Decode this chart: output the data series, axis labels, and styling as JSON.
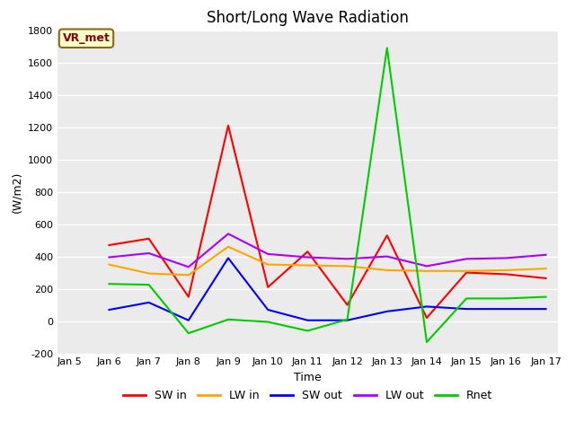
{
  "title": "Short/Long Wave Radiation",
  "xlabel": "Time",
  "ylabel": "(W/m2)",
  "ylim": [
    -200,
    1800
  ],
  "yticks": [
    -200,
    0,
    200,
    400,
    600,
    800,
    1000,
    1200,
    1400,
    1600,
    1800
  ],
  "x_labels": [
    "Jan 5",
    "Jan 6",
    "Jan 7",
    "Jan 8",
    "Jan 9",
    "Jan 10",
    "Jan 11",
    "Jan 12",
    "Jan 13",
    "Jan 14",
    "Jan 15",
    "Jan 16",
    "Jan 17"
  ],
  "x_values": [
    0,
    1,
    2,
    3,
    4,
    5,
    6,
    7,
    8,
    9,
    10,
    11,
    12
  ],
  "annotation_text": "VR_met",
  "series": {
    "SW in": {
      "color": "#ff0000",
      "x": [
        1,
        2,
        3,
        4,
        5,
        6,
        7,
        8,
        9,
        10,
        11,
        12
      ],
      "y": [
        470,
        510,
        150,
        1210,
        210,
        430,
        100,
        530,
        20,
        300,
        290,
        265
      ]
    },
    "LW in": {
      "color": "#ffa500",
      "x": [
        1,
        2,
        3,
        4,
        5,
        6,
        7,
        8,
        9,
        10,
        11,
        12
      ],
      "y": [
        350,
        295,
        285,
        460,
        350,
        345,
        340,
        315,
        310,
        310,
        315,
        325
      ]
    },
    "SW out": {
      "color": "#0000ff",
      "x": [
        1,
        2,
        3,
        4,
        5,
        6,
        7,
        8,
        9,
        10,
        11,
        12
      ],
      "y": [
        70,
        115,
        5,
        390,
        70,
        5,
        5,
        60,
        90,
        75,
        75,
        75
      ]
    },
    "LW out": {
      "color": "#aa00ff",
      "x": [
        1,
        2,
        3,
        4,
        5,
        6,
        7,
        8,
        9,
        10,
        11,
        12
      ],
      "y": [
        395,
        420,
        335,
        540,
        415,
        395,
        385,
        400,
        340,
        385,
        390,
        410
      ]
    },
    "Rnet": {
      "color": "#00cc00",
      "x": [
        1,
        2,
        3,
        4,
        5,
        6,
        7,
        8,
        9,
        10,
        11,
        12
      ],
      "y": [
        230,
        225,
        -75,
        10,
        -5,
        -60,
        10,
        1690,
        -130,
        140,
        140,
        150
      ]
    }
  },
  "background_color": "#ebebeb",
  "grid_color": "#ffffff",
  "title_fontsize": 12,
  "tick_fontsize": 8,
  "legend_fontsize": 9,
  "annotation_fontsize": 9,
  "annotation_color": "#8b0000",
  "annotation_bg": "#ffffcc",
  "annotation_edge": "#8b6914"
}
